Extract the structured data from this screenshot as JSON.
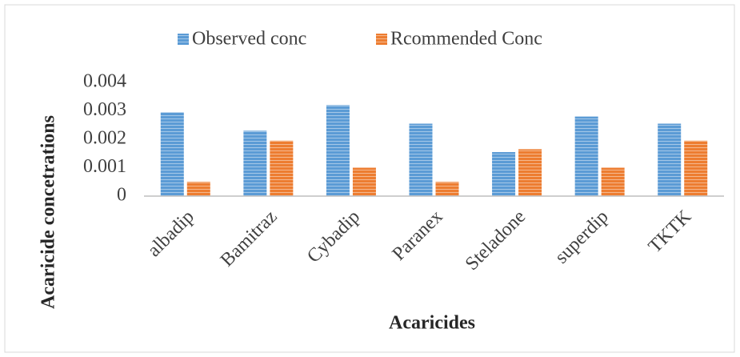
{
  "chart_data": {
    "type": "bar",
    "categories": [
      "albadip",
      "Bamitraz",
      "Cybadip",
      "Paranex",
      "Steladone",
      "superdip",
      "TKTK"
    ],
    "series": [
      {
        "name": "Observed conc",
        "color": "#5b9bd5",
        "values": [
          0.00295,
          0.0023,
          0.0032,
          0.00255,
          0.00155,
          0.0028,
          0.00255
        ]
      },
      {
        "name": "Rcommended Conc",
        "color": "#ed7d31",
        "values": [
          0.0005,
          0.00195,
          0.001,
          0.0005,
          0.00165,
          0.001,
          0.00195
        ]
      }
    ],
    "x_label": "Acaricides",
    "y_label": "Acaricide concetrations",
    "ylim": [
      0,
      0.004
    ],
    "yticks": [
      0,
      0.001,
      0.002,
      0.003,
      0.004
    ],
    "grid": false
  }
}
